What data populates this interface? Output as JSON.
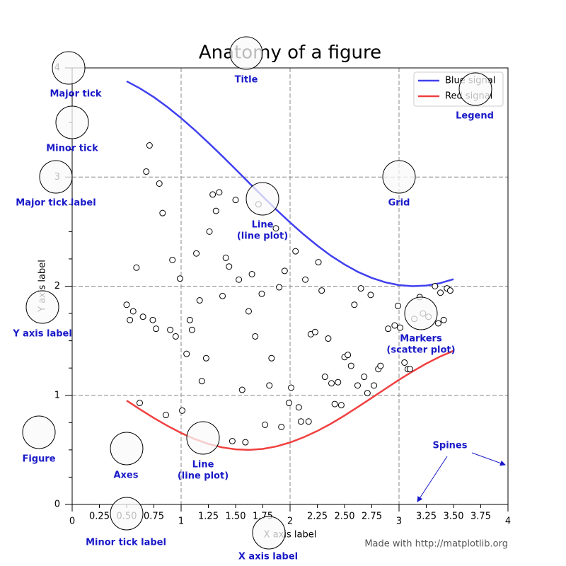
{
  "chart_data": {
    "type": "line",
    "title": "Anatomy of a figure",
    "xlabel": "X axis label",
    "ylabel": "Y axis label",
    "footer": "Made with http://matplotlib.org",
    "xlim": [
      0,
      4
    ],
    "ylim": [
      0,
      4
    ],
    "xticks": [
      0,
      1,
      2,
      3,
      4
    ],
    "yticks": [
      0,
      1,
      2,
      3,
      4
    ],
    "xminorticks": [
      0.25,
      {
        "value": 0.5,
        "label": "0.50"
      },
      0.75,
      1.25,
      {
        "value": 1.5,
        "label": "1.50"
      },
      1.75,
      2.25,
      {
        "value": 2.5,
        "label": "2.50"
      },
      2.75,
      3.25,
      {
        "value": 3.5,
        "label": "3.50"
      },
      3.75
    ],
    "yminorticks": [
      0.25,
      0.5,
      0.75,
      1.25,
      1.5,
      1.75,
      2.25,
      2.5,
      2.75,
      3.25,
      3.5,
      3.75
    ],
    "grid": true,
    "legend": "upper right",
    "x": [
      0.5,
      0.625,
      0.75,
      0.875,
      1.0,
      1.125,
      1.25,
      1.375,
      1.5,
      1.625,
      1.75,
      1.875,
      2.0,
      2.125,
      2.25,
      2.375,
      2.5,
      2.625,
      2.75,
      2.875,
      3.0,
      3.125,
      3.25,
      3.375,
      3.5
    ],
    "series": [
      {
        "name": "Blue signal",
        "color": "#4040f0",
        "values": [
          3.878,
          3.811,
          3.732,
          3.641,
          3.54,
          3.431,
          3.315,
          3.195,
          3.071,
          2.946,
          2.822,
          2.7,
          2.584,
          2.474,
          2.372,
          2.279,
          2.199,
          2.13,
          2.076,
          2.035,
          2.01,
          2.0,
          2.006,
          2.027,
          2.064
        ]
      },
      {
        "name": "Red signal",
        "color": "#f04040",
        "values": [
          0.952,
          0.87,
          0.792,
          0.72,
          0.655,
          0.599,
          0.555,
          0.523,
          0.505,
          0.5,
          0.509,
          0.532,
          0.568,
          0.616,
          0.673,
          0.74,
          0.815,
          0.895,
          0.977,
          1.06,
          1.142,
          1.219,
          1.291,
          1.354,
          1.408
        ]
      }
    ],
    "scatter": {
      "x": [
        0.5,
        0.53,
        0.56,
        0.59,
        0.62,
        0.65,
        0.68,
        0.71,
        0.74,
        0.77,
        0.8,
        0.83,
        0.86,
        0.9,
        0.92,
        0.95,
        0.99,
        1.01,
        1.05,
        1.08,
        1.1,
        1.14,
        1.17,
        1.19,
        1.23,
        1.26,
        1.29,
        1.32,
        1.35,
        1.38,
        1.41,
        1.44,
        1.47,
        1.5,
        1.53,
        1.56,
        1.59,
        1.62,
        1.65,
        1.68,
        1.71,
        1.74,
        1.77,
        1.81,
        1.83,
        1.87,
        1.9,
        1.92,
        1.95,
        1.99,
        2.01,
        2.05,
        2.08,
        2.1,
        2.14,
        2.17,
        2.19,
        2.23,
        2.26,
        2.29,
        2.32,
        2.35,
        2.38,
        2.41,
        2.44,
        2.47,
        2.5,
        2.53,
        2.56,
        2.59,
        2.62,
        2.65,
        2.68,
        2.71,
        2.74,
        2.77,
        2.81,
        2.83,
        2.9,
        2.96,
        2.99,
        3.01,
        3.05,
        3.08,
        3.1,
        3.14,
        3.19,
        3.22,
        3.27,
        3.33,
        3.36,
        3.38,
        3.41,
        3.44,
        3.47
      ],
      "y": [
        1.83,
        1.69,
        1.77,
        2.17,
        0.93,
        1.72,
        3.05,
        3.29,
        1.69,
        1.61,
        2.94,
        2.67,
        0.82,
        1.6,
        2.24,
        1.54,
        2.07,
        0.86,
        1.38,
        1.69,
        1.6,
        2.3,
        1.87,
        1.13,
        1.34,
        2.5,
        2.84,
        2.69,
        2.86,
        1.91,
        2.26,
        2.18,
        0.58,
        2.79,
        2.06,
        1.05,
        0.57,
        1.77,
        2.11,
        1.54,
        2.75,
        1.93,
        0.73,
        1.09,
        1.34,
        2.53,
        1.99,
        0.71,
        2.14,
        0.93,
        1.07,
        2.32,
        0.89,
        0.76,
        2.06,
        0.76,
        1.56,
        1.58,
        2.22,
        1.96,
        1.17,
        1.52,
        1.11,
        0.92,
        1.12,
        0.91,
        1.35,
        1.37,
        1.27,
        1.83,
        1.09,
        1.98,
        1.17,
        1.02,
        1.92,
        1.09,
        1.24,
        1.27,
        1.61,
        1.64,
        1.82,
        1.62,
        1.3,
        1.24,
        1.24,
        1.7,
        1.9,
        1.75,
        1.72,
        2.0,
        1.66,
        1.94,
        1.69,
        1.98,
        1.96
      ]
    },
    "annotations": [
      {
        "lines": [
          "Major tick"
        ]
      },
      {
        "lines": [
          "Minor tick"
        ]
      },
      {
        "lines": [
          "Major tick label"
        ]
      },
      {
        "lines": [
          "Grid"
        ]
      },
      {
        "lines": [
          "Line",
          "(line plot)"
        ]
      },
      {
        "lines": [
          "Title"
        ]
      },
      {
        "lines": [
          "Legend"
        ]
      },
      {
        "lines": [
          "Y axis label"
        ]
      },
      {
        "lines": [
          "Markers",
          "(scatter plot)"
        ]
      },
      {
        "lines": [
          "Figure"
        ]
      },
      {
        "lines": [
          "Axes"
        ]
      },
      {
        "lines": [
          "Line",
          "(line plot)"
        ]
      },
      {
        "lines": [
          "Spines"
        ]
      },
      {
        "lines": [
          "Minor tick label"
        ]
      },
      {
        "lines": [
          "X axis label"
        ]
      }
    ]
  }
}
